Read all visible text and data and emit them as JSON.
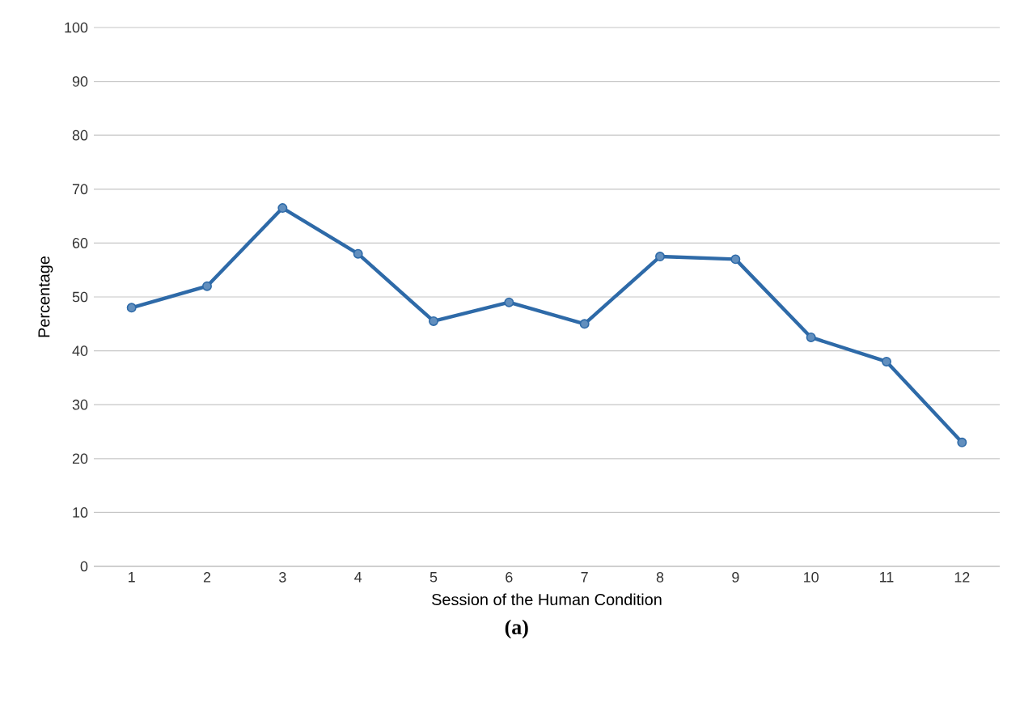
{
  "chart_data": {
    "type": "line",
    "categories": [
      "1",
      "2",
      "3",
      "4",
      "5",
      "6",
      "7",
      "8",
      "9",
      "10",
      "11",
      "12"
    ],
    "series": [
      {
        "color": "#2e6aa8",
        "values": [
          48,
          52,
          66.5,
          58,
          45.5,
          49,
          45,
          57.5,
          57,
          42.5,
          38,
          23
        ]
      }
    ],
    "xlabel": "Session of the Human Condition",
    "ylabel": "Percentage",
    "ylim": [
      0,
      100
    ],
    "yticks": [
      0,
      10,
      20,
      30,
      40,
      50,
      60,
      70,
      80,
      90,
      100
    ],
    "grid": "y",
    "marker": "circle",
    "line_style": "solid",
    "annotations": [
      "**(a)**"
    ]
  }
}
